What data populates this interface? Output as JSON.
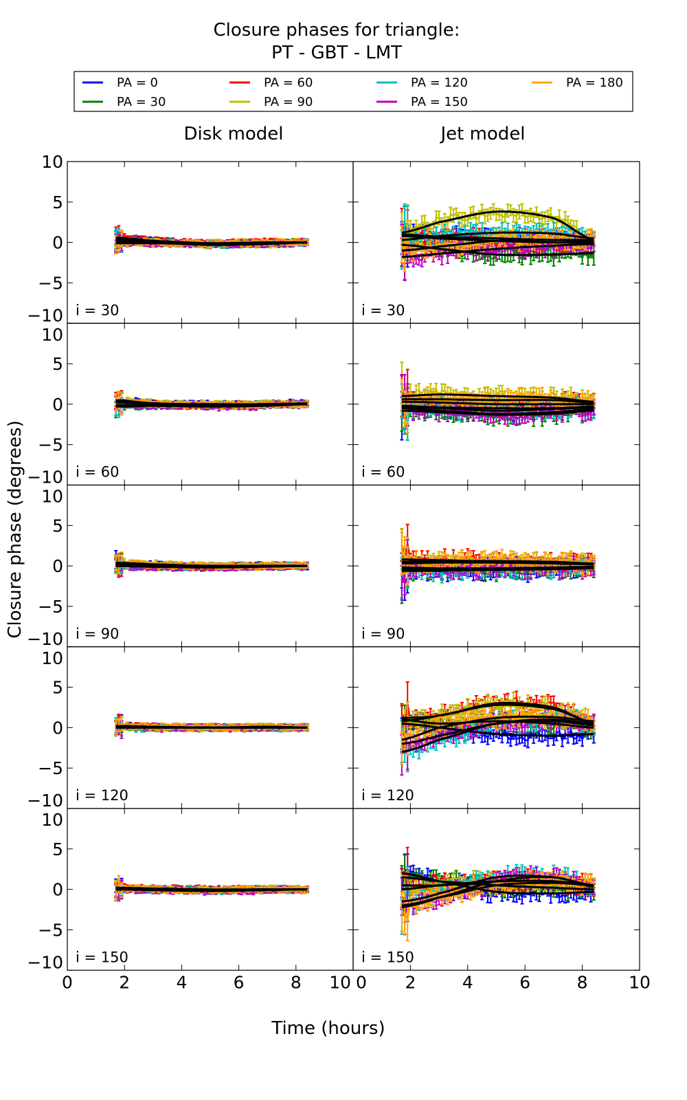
{
  "chart_data": {
    "type": "line",
    "title": [
      "Closure phases for triangle:",
      "PT - GBT - LMT"
    ],
    "xlabel": "Time (hours)",
    "ylabel": "Closure phase (degrees)",
    "xlim": [
      0,
      10
    ],
    "ylim": [
      -10,
      10
    ],
    "xticks": [
      0,
      2,
      4,
      6,
      8,
      10
    ],
    "yticks": [
      -10,
      -5,
      0,
      5,
      10
    ],
    "grid": false,
    "columns": [
      "Disk model",
      "Jet model"
    ],
    "time_range": [
      1.7,
      8.4
    ],
    "anchor_times": [
      1.7,
      3,
      5,
      7,
      8.4
    ],
    "legend": {
      "placement": "top",
      "entries": [
        {
          "label": "PA = 0",
          "color": "#0000ff"
        },
        {
          "label": "PA = 30",
          "color": "#008000"
        },
        {
          "label": "PA = 60",
          "color": "#ff0000"
        },
        {
          "label": "PA = 90",
          "color": "#bfbf00"
        },
        {
          "label": "PA = 120",
          "color": "#00bfbf"
        },
        {
          "label": "PA = 150",
          "color": "#bf00bf"
        },
        {
          "label": "PA = 180",
          "color": "#ffa500"
        }
      ]
    },
    "rows": [
      {
        "label": "i = 30",
        "disk": [
          [
            0.5,
            0.2,
            -0.2,
            -0.1,
            0
          ],
          [
            0.3,
            0.1,
            -0.2,
            -0.1,
            0
          ],
          [
            0.6,
            0.2,
            -0.1,
            0,
            0
          ],
          [
            0.2,
            0,
            -0.3,
            -0.2,
            0
          ],
          [
            0.1,
            0,
            -0.2,
            -0.1,
            0
          ],
          [
            -0.1,
            -0.1,
            -0.2,
            -0.1,
            0
          ],
          [
            0,
            0,
            -0.1,
            0,
            0
          ]
        ],
        "jet": [
          [
            1.0,
            0.7,
            0.5,
            0.3,
            0.2
          ],
          [
            -0.3,
            -0.8,
            -1.5,
            -1.5,
            -1.3
          ],
          [
            0.8,
            0.5,
            0.2,
            0,
            0
          ],
          [
            1.2,
            2.5,
            3.8,
            3.0,
            0.3
          ],
          [
            0.3,
            0.8,
            1.2,
            1.1,
            0.5
          ],
          [
            -1.8,
            -1.4,
            -0.8,
            -0.4,
            -0.2
          ],
          [
            -1.0,
            -0.5,
            0.2,
            0.3,
            0.3
          ]
        ]
      },
      {
        "label": "i = 60",
        "disk": [
          [
            0.5,
            0.1,
            0,
            0,
            0.1
          ],
          [
            -0.3,
            -0.2,
            -0.2,
            -0.1,
            0
          ],
          [
            0.3,
            0.1,
            -0.1,
            0,
            0
          ],
          [
            0.4,
            0.1,
            -0.1,
            0,
            0
          ],
          [
            -0.2,
            -0.1,
            -0.1,
            0,
            0
          ],
          [
            -0.1,
            -0.2,
            -0.3,
            -0.2,
            0
          ],
          [
            0.2,
            0,
            -0.1,
            0,
            0
          ]
        ],
        "jet": [
          [
            -0.2,
            -0.4,
            -0.5,
            -0.5,
            -0.3
          ],
          [
            -0.8,
            -1,
            -1.3,
            -1.2,
            -0.8
          ],
          [
            0.3,
            0.2,
            0,
            0,
            0
          ],
          [
            1,
            1.2,
            1,
            0.8,
            0.3
          ],
          [
            -0.3,
            -0.5,
            -0.8,
            -0.6,
            -0.4
          ],
          [
            -0.5,
            -0.8,
            -1.2,
            -1,
            -0.6
          ],
          [
            0.6,
            0.6,
            0.5,
            0.5,
            0.2
          ]
        ]
      },
      {
        "label": "i = 90",
        "disk": [
          [
            0.3,
            0.1,
            0,
            0,
            0
          ],
          [
            0,
            -0.1,
            -0.1,
            0,
            0
          ],
          [
            0.2,
            0,
            -0.1,
            0,
            0
          ],
          [
            0.4,
            0.2,
            0,
            0,
            0
          ],
          [
            0,
            -0.1,
            -0.1,
            0,
            0
          ],
          [
            0,
            -0.1,
            -0.2,
            -0.1,
            0
          ],
          [
            0.3,
            0.1,
            0,
            0,
            0
          ]
        ],
        "jet": [
          [
            -0.5,
            -0.5,
            -0.5,
            -0.4,
            -0.3
          ],
          [
            -0.3,
            -0.4,
            -0.4,
            -0.3,
            -0.2
          ],
          [
            0.8,
            0.7,
            0.5,
            0.4,
            0.2
          ],
          [
            0.3,
            0.4,
            0.4,
            0.3,
            0.2
          ],
          [
            -0.6,
            -0.6,
            -0.4,
            -0.3,
            -0.2
          ],
          [
            -0.2,
            -0.3,
            -0.3,
            -0.2,
            -0.1
          ],
          [
            0.5,
            0.6,
            0.6,
            0.5,
            0.3
          ]
        ]
      },
      {
        "label": "i = 120",
        "disk": [
          [
            0.2,
            0.1,
            0,
            0,
            0
          ],
          [
            0,
            0,
            0,
            0,
            0
          ],
          [
            0.2,
            0.1,
            0,
            0,
            0
          ],
          [
            0.1,
            0,
            0,
            0.1,
            0
          ],
          [
            0,
            0,
            0,
            0,
            0
          ],
          [
            0.1,
            0,
            0,
            0,
            0
          ],
          [
            0.2,
            0.1,
            0,
            0.1,
            0
          ]
        ],
        "jet": [
          [
            0.5,
            0,
            -0.8,
            -1,
            -0.8
          ],
          [
            1,
            0.5,
            0.8,
            0.5,
            0
          ],
          [
            1.2,
            1.5,
            3,
            2.5,
            0.5
          ],
          [
            0.8,
            1.5,
            2.8,
            2.3,
            0.6
          ],
          [
            -3,
            -1.5,
            0.5,
            1,
            0.5
          ],
          [
            -2,
            -1,
            0.5,
            0.8,
            0.3
          ],
          [
            -1.5,
            0,
            1.2,
            1.3,
            0.8
          ]
        ]
      },
      {
        "label": "i = 150",
        "disk": [
          [
            0.2,
            0,
            -0.1,
            0,
            0
          ],
          [
            0.1,
            0,
            -0.1,
            0,
            0
          ],
          [
            0.2,
            0.1,
            0,
            0,
            0
          ],
          [
            0.1,
            0,
            -0.1,
            0,
            0
          ],
          [
            0,
            0,
            -0.1,
            0,
            0
          ],
          [
            0,
            -0.1,
            -0.2,
            -0.1,
            0
          ],
          [
            0.2,
            0,
            -0.1,
            0,
            0
          ]
        ],
        "jet": [
          [
            2,
            1,
            -0.3,
            -0.5,
            -0.3
          ],
          [
            1.5,
            1,
            0.5,
            0.2,
            0
          ],
          [
            0.5,
            0.5,
            1,
            1,
            0.5
          ],
          [
            0,
            0.5,
            1,
            1,
            0.5
          ],
          [
            -1.5,
            -0.5,
            1.5,
            1.5,
            0.5
          ],
          [
            -2.2,
            -1,
            1,
            1.5,
            0.3
          ],
          [
            -2,
            -1,
            0.5,
            0.8,
            0.5
          ]
        ]
      }
    ]
  }
}
